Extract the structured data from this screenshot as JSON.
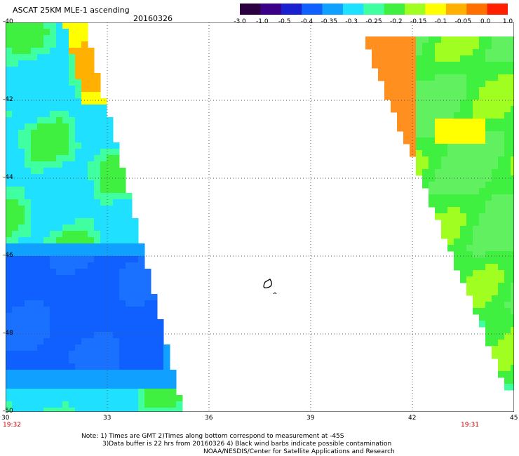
{
  "header": {
    "title": "ASCAT 25KM MLE-1 ascending",
    "date": "20160326"
  },
  "colorbar": {
    "colors": [
      "#2a0040",
      "#3a0088",
      "#1a20d0",
      "#1060ff",
      "#10a0ff",
      "#20e0ff",
      "#40ffa0",
      "#40f040",
      "#a0ff20",
      "#ffff00",
      "#ffb000",
      "#ff7000",
      "#ff2000"
    ],
    "labels": [
      "-3.0",
      "-1.0",
      "-0.5",
      "-0.4",
      "-0.35",
      "-0.3",
      "-0.25",
      "-0.2",
      "-0.15",
      "-0.1",
      "-0.05",
      "0.0",
      "1.0"
    ]
  },
  "map": {
    "lon_ticks": [
      "30",
      "33",
      "36",
      "39",
      "42",
      "45"
    ],
    "lat_ticks": [
      "-40",
      "-42",
      "-44",
      "-46",
      "-48",
      "-50"
    ],
    "start_time": "19:32",
    "end_time": "19:31"
  },
  "notes": {
    "line1": "Note: 1) Times are GMT 2)Times along bottom correspond to measurement at -45S",
    "line2": "3)Data buffer is 22 hrs from 20160326 4) Black wind barbs indicate possible contamination",
    "line3": "NOAA/NESDIS/Center for Satellite Applications and Research"
  }
}
